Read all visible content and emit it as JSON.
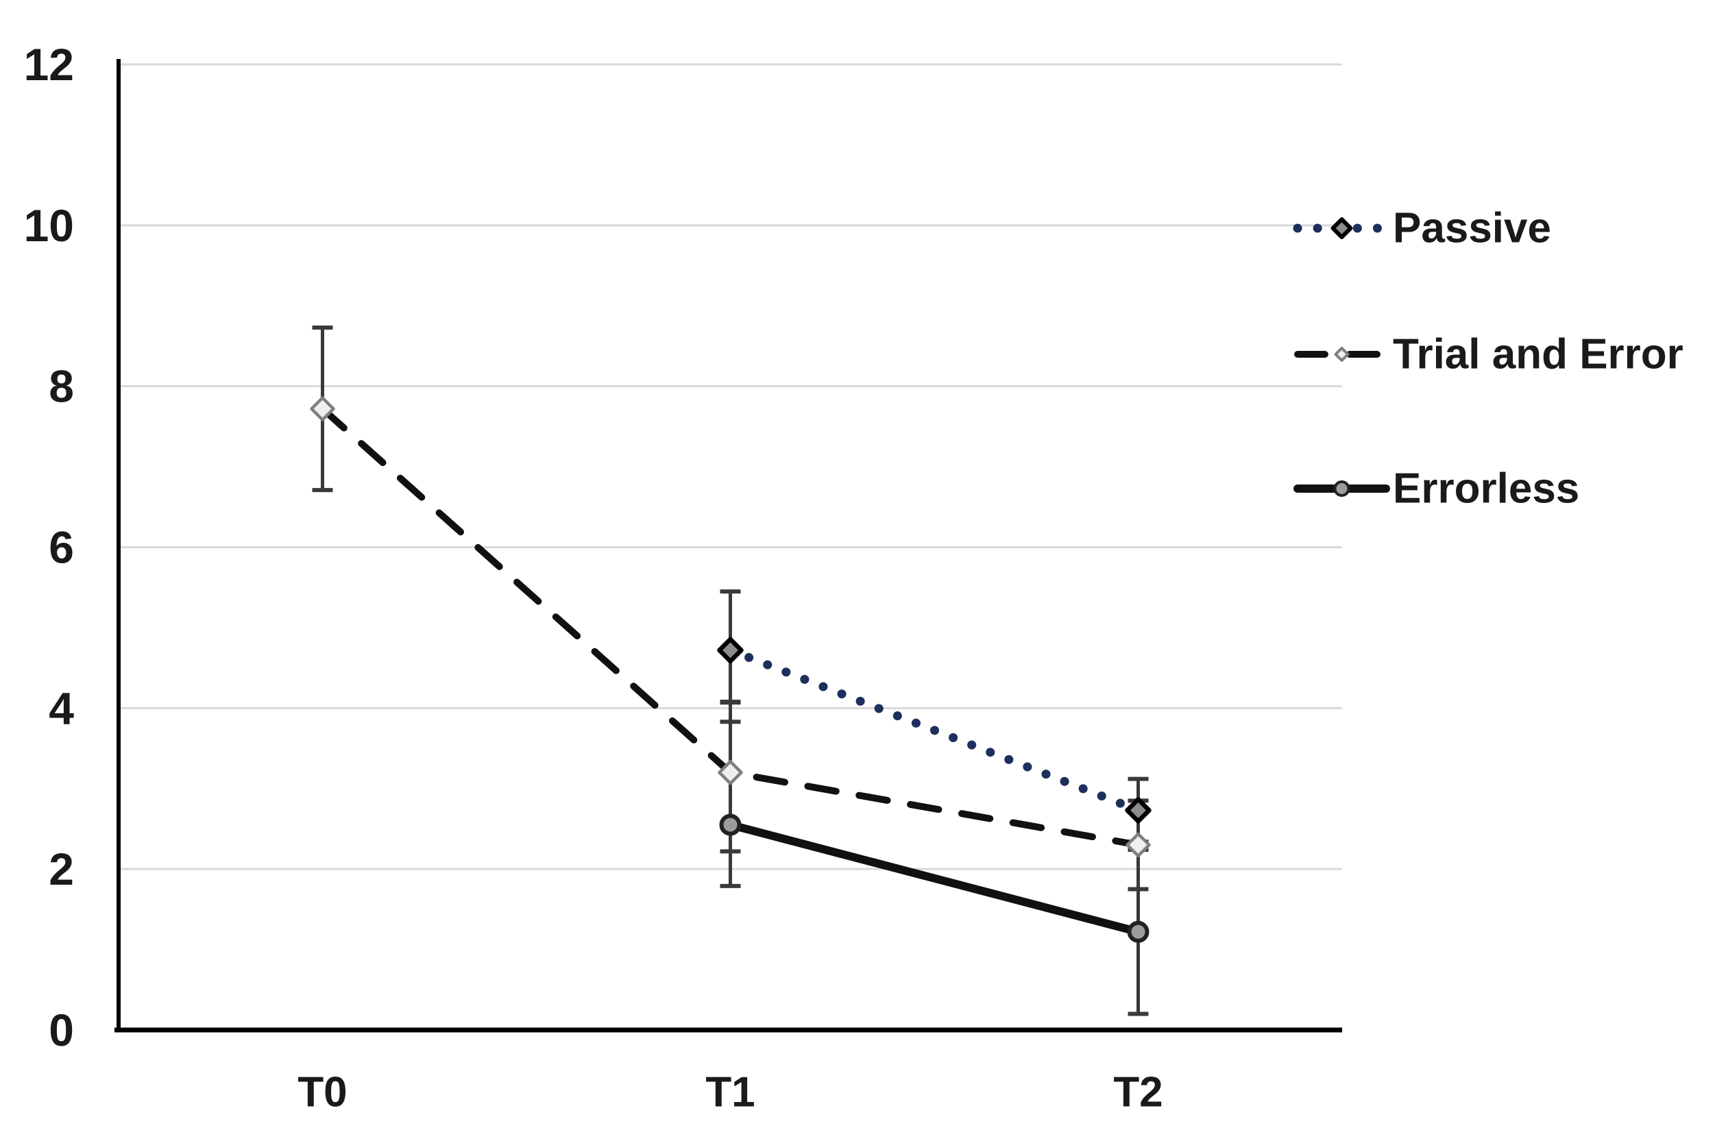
{
  "figure_title": "",
  "chart_data": {
    "type": "line",
    "title": "",
    "xlabel": "",
    "ylabel": "",
    "categories": [
      "T0",
      "T1",
      "T2"
    ],
    "ylim": [
      0,
      12
    ],
    "yticks": [
      0,
      2,
      4,
      6,
      8,
      10,
      12
    ],
    "grid": "horizontal",
    "legend_position": "right",
    "series": [
      {
        "name": "Passive",
        "line_style": "dotted",
        "line_color": "#1e2f5c",
        "marker": "diamond",
        "marker_fill": "#8c8c8c",
        "marker_stroke": "#000000",
        "points": [
          {
            "category": "T1",
            "y": 4.72,
            "err_low": 4.07,
            "err_high": 5.45
          },
          {
            "category": "T2",
            "y": 2.73,
            "err_low": 2.34,
            "err_high": 3.12
          }
        ]
      },
      {
        "name": "Trial and Error",
        "line_style": "dashed",
        "line_color": "#111111",
        "marker": "diamond",
        "marker_fill": "#efefef",
        "marker_stroke": "#7f7f7f",
        "points": [
          {
            "category": "T0",
            "y": 7.72,
            "err_low": 6.71,
            "err_high": 8.73
          },
          {
            "category": "T1",
            "y": 3.2,
            "err_low": 2.22,
            "err_high": 4.08
          },
          {
            "category": "T2",
            "y": 2.3,
            "err_low": 1.75,
            "err_high": 2.85
          }
        ]
      },
      {
        "name": "Errorless",
        "line_style": "solid",
        "line_color": "#111111",
        "marker": "circle",
        "marker_fill": "#9c9c9c",
        "marker_stroke": "#222222",
        "points": [
          {
            "category": "T1",
            "y": 2.55,
            "err_low": 1.79,
            "err_high": 3.83
          },
          {
            "category": "T2",
            "y": 1.22,
            "err_low": 0.2,
            "err_high": 2.24
          }
        ]
      }
    ],
    "colors": {
      "background": "#ffffff",
      "gridline": "#d9d9d9",
      "axis": "#000000",
      "error_bar": "#3a3a3a",
      "tick_text": "#1a1a1a"
    }
  }
}
